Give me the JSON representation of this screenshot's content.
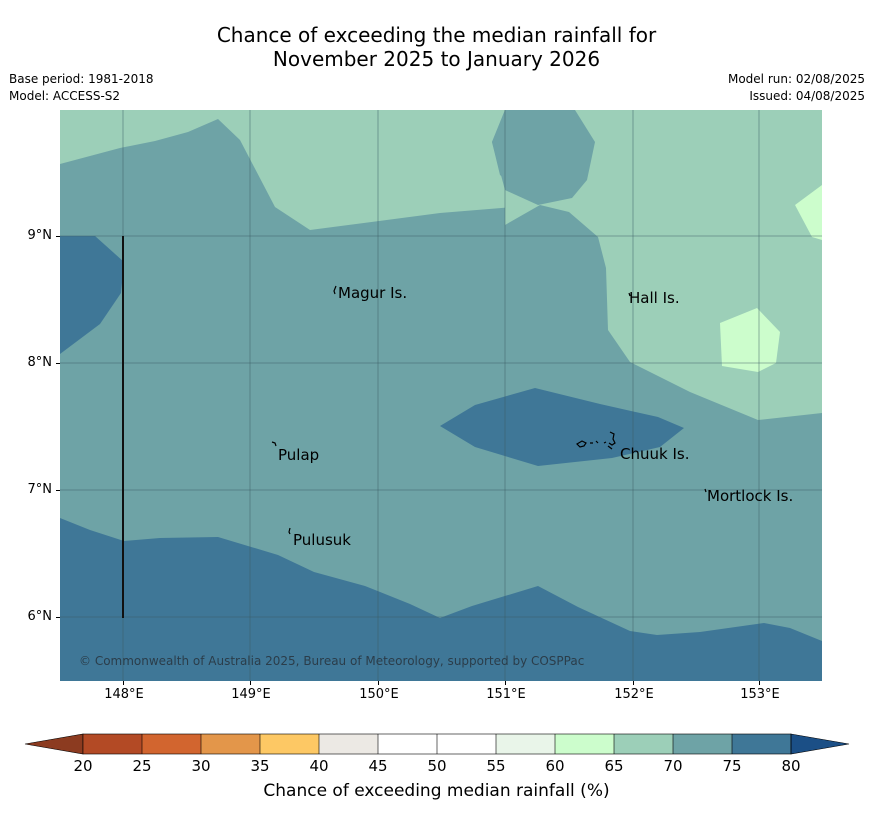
{
  "title": {
    "line1": "Chance of exceeding the median rainfall for",
    "line2": "November 2025 to January 2026"
  },
  "meta": {
    "base_period": "Base period: 1981-2018",
    "model": "Model: ACCESS-S2",
    "model_run": "Model run: 02/08/2025",
    "issued": "Issued: 04/08/2025"
  },
  "axes": {
    "lat_labels": [
      "9°N",
      "8°N",
      "7°N",
      "6°N"
    ],
    "lon_labels": [
      "148°E",
      "149°E",
      "150°E",
      "151°E",
      "152°E",
      "153°E"
    ]
  },
  "places": [
    "Magur Is.",
    "Hall Is.",
    "Pulap",
    "Chuuk Is.",
    "Mortlock Is.",
    "Pulusuk"
  ],
  "copyright": "© Commonwealth of Australia 2025, Bureau of Meteorology, supported by COSPPac",
  "colorbar": {
    "title": "Chance of exceeding median rainfall (%)",
    "ticks": [
      "20",
      "25",
      "30",
      "35",
      "40",
      "45",
      "50",
      "55",
      "60",
      "65",
      "70",
      "75",
      "80"
    ],
    "colors": [
      "#8c3b20",
      "#b34a25",
      "#d2652f",
      "#e3964a",
      "#fdc864",
      "#ece9e4",
      "#ffffff",
      "#ffffff",
      "#e9f5e9",
      "#ccfdcc",
      "#9ccfb8",
      "#6ea3a6",
      "#3f7797",
      "#1b4f86"
    ]
  },
  "map_colors": {
    "c60_65": "#ccfdcc",
    "c65_70": "#9ccfb8",
    "c70_75": "#6ea3a6",
    "c75_80": "#3f7797"
  }
}
